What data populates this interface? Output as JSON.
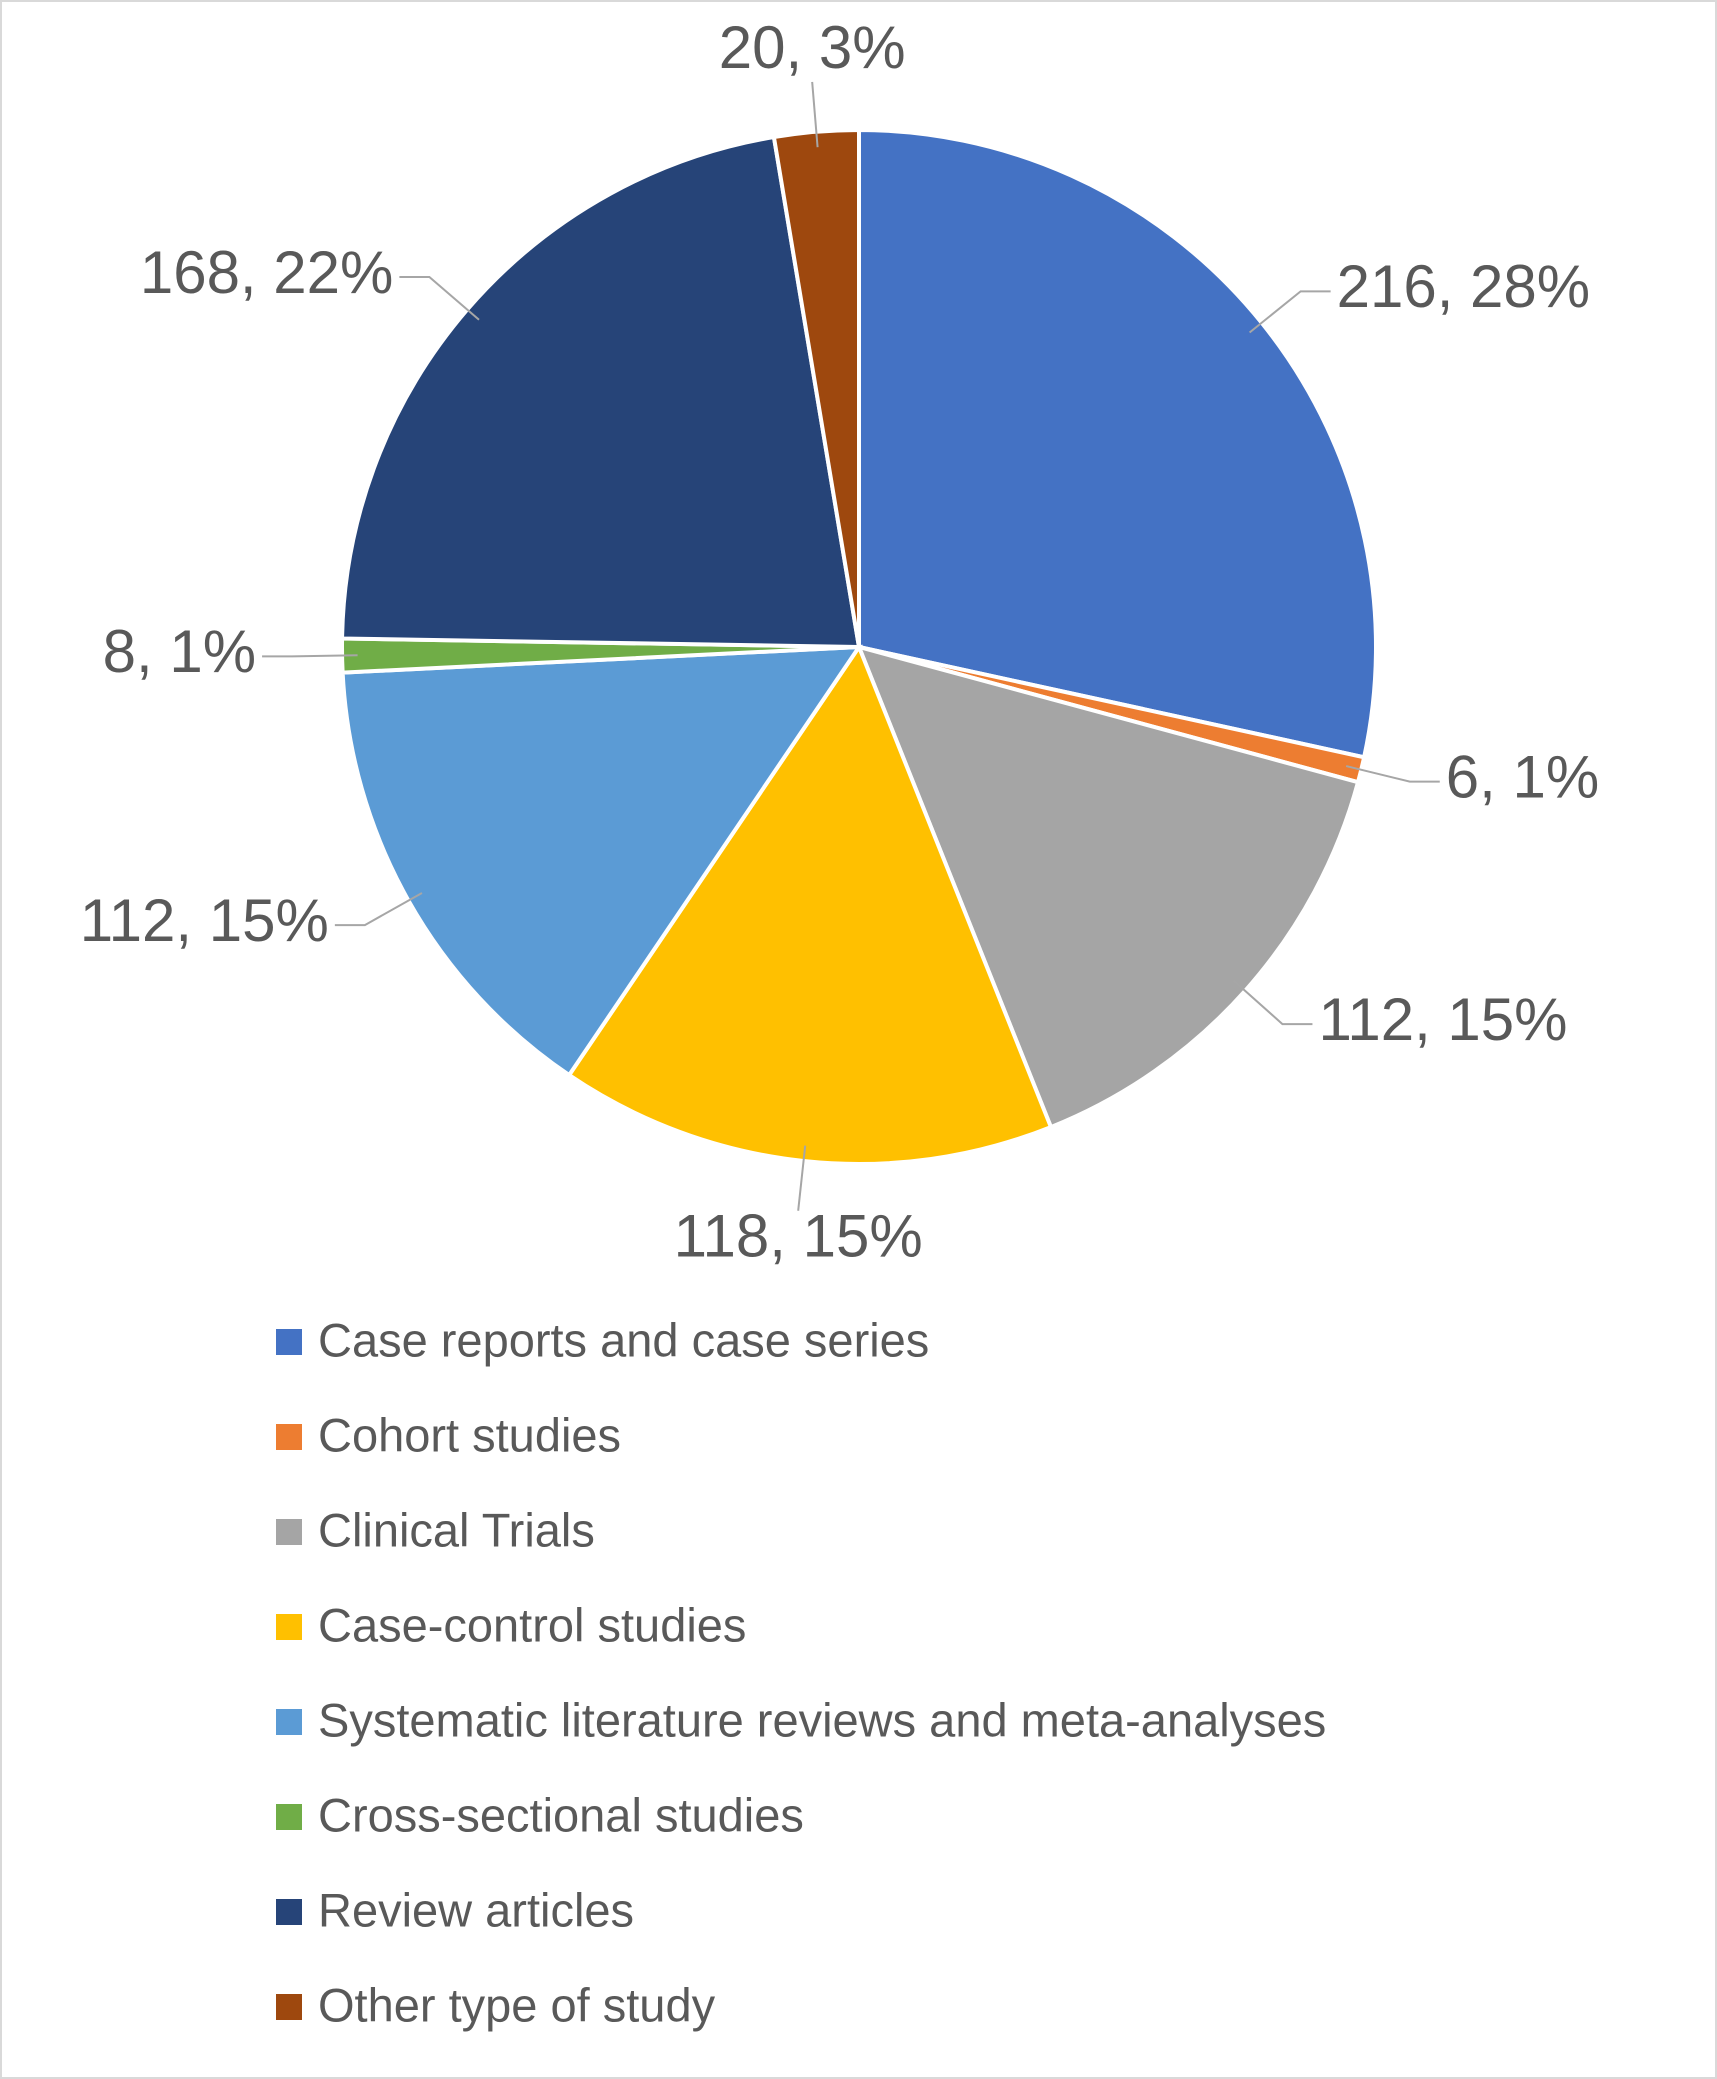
{
  "chart_data": {
    "type": "pie",
    "categories": [
      "Case reports and case series",
      "Cohort studies",
      "Clinical Trials",
      "Case-control studies",
      "Systematic literature reviews and meta-analyses",
      "Cross-sectional studies",
      "Review articles",
      "Other type of study"
    ],
    "values": [
      216,
      6,
      112,
      118,
      112,
      8,
      168,
      20
    ],
    "value_labels": [
      "216, 28%",
      "6, 1%",
      "112, 15%",
      "118, 15%",
      "112, 15%",
      "8, 1%",
      "168, 22%",
      "20, 3%"
    ],
    "colors": [
      "#4472c4",
      "#ed7d31",
      "#a5a5a5",
      "#ffc000",
      "#5b9bd5",
      "#70ad47",
      "#264478",
      "#9e480e"
    ],
    "legend": "bottom"
  }
}
